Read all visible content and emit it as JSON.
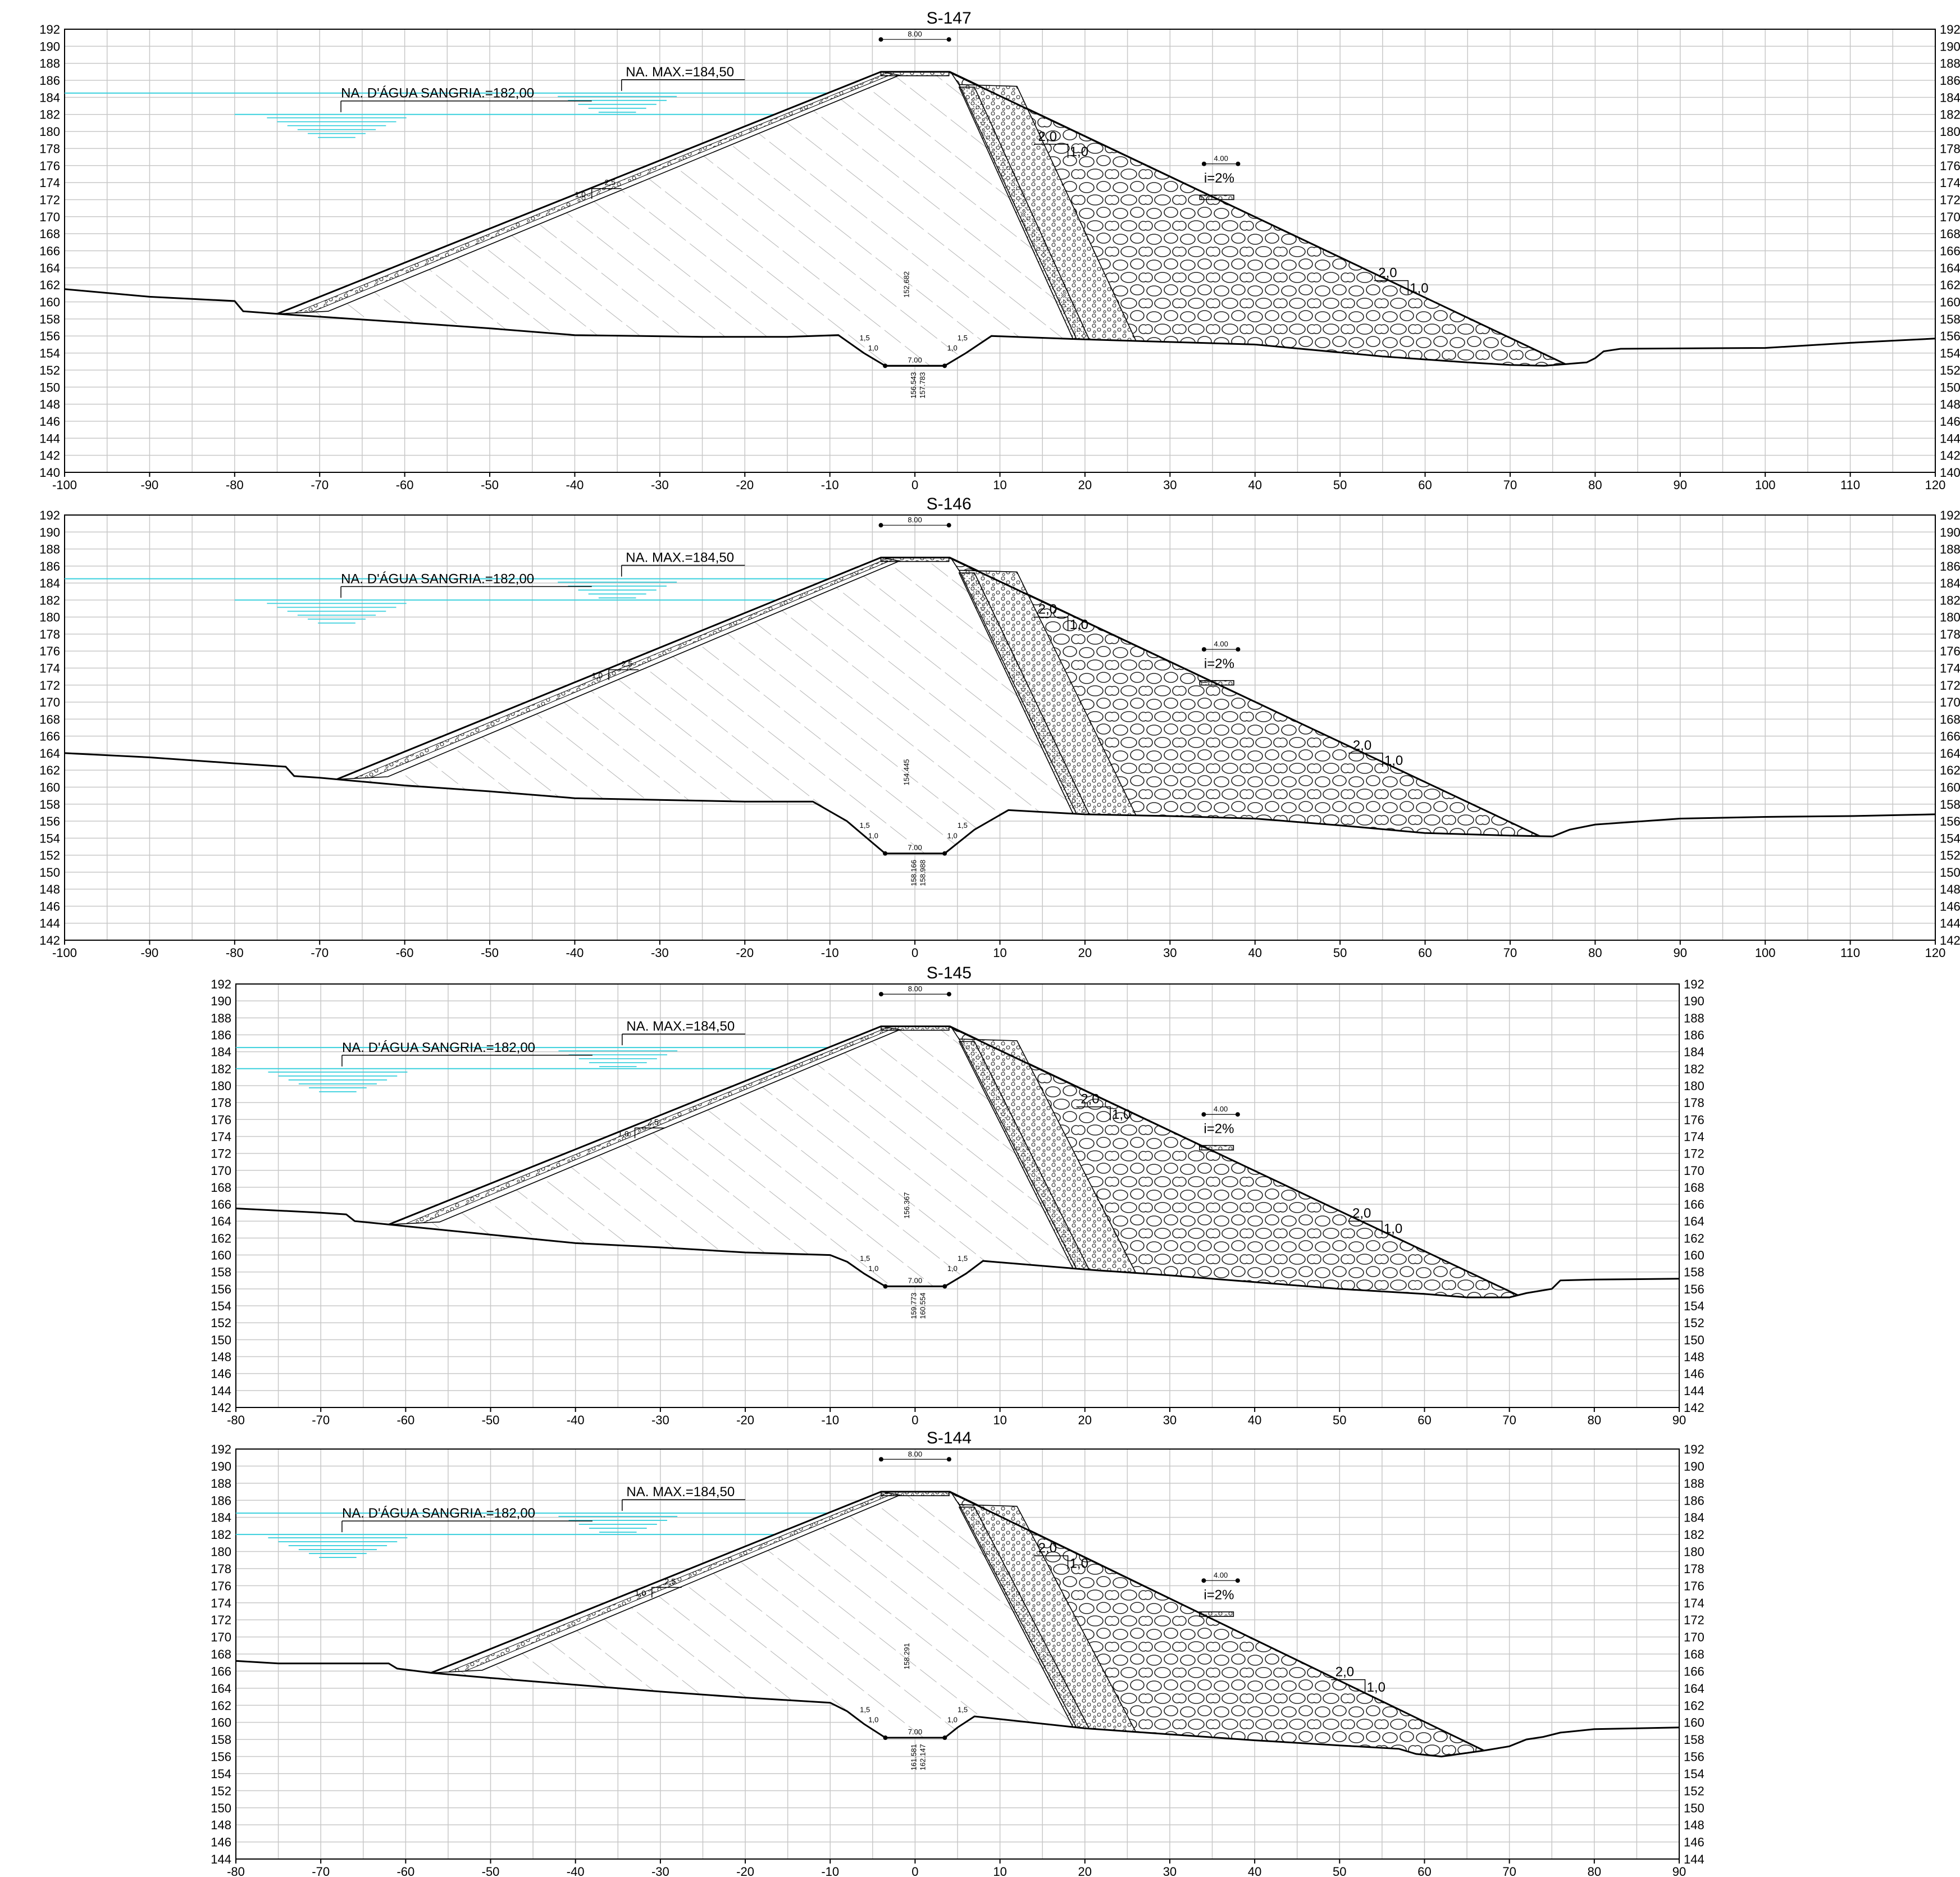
{
  "colors": {
    "grid": "#c8c8c8",
    "water": "#3ad0dd",
    "line": "#000000",
    "fill": "#ffffff"
  },
  "labels": {
    "na_max": "NA. MAX.=184,50",
    "na_sangria": "NA. D'ÁGUA SANGRIA.=182,00",
    "crest_width": "8.00",
    "berm_width": "4.00",
    "berm_slope": "i=2%",
    "slope_2_0": "2,0",
    "slope_1_0": "1,0",
    "slope_2_5": "2,5",
    "slope_1_5": "1,5",
    "base_width": "7.00"
  },
  "chart_data": [
    {
      "type": "section",
      "title": "S-147",
      "xlim": [
        -100,
        120
      ],
      "ylim": [
        140,
        192
      ],
      "ground": [
        [
          -100,
          161.5
        ],
        [
          -90,
          160.6
        ],
        [
          -80,
          160.1
        ],
        [
          -79,
          158.9
        ],
        [
          -75,
          158.6
        ],
        [
          -60,
          157.6
        ],
        [
          -50,
          156.9
        ],
        [
          -40,
          156.1
        ],
        [
          -25,
          155.9
        ],
        [
          -15,
          155.9
        ],
        [
          -9,
          156.1
        ],
        [
          -6,
          154.0
        ],
        [
          -3.5,
          152.5
        ],
        [
          3.5,
          152.5
        ],
        [
          6,
          154.0
        ],
        [
          9,
          156.0
        ],
        [
          20,
          155.6
        ],
        [
          30,
          155.3
        ],
        [
          40,
          155.0
        ],
        [
          55,
          153.6
        ],
        [
          65,
          152.9
        ],
        [
          70,
          152.6
        ],
        [
          74,
          152.5
        ],
        [
          79,
          152.9
        ],
        [
          80,
          153.4
        ],
        [
          81,
          154.2
        ],
        [
          83,
          154.5
        ],
        [
          100,
          154.6
        ],
        [
          110,
          155.2
        ],
        [
          120,
          155.7
        ]
      ],
      "us_toe": -75,
      "ds_toe": 76.5,
      "berm": 2,
      "ds_slope_labels": [
        [
          17,
          178.5
        ],
        [
          57,
          162.5
        ]
      ],
      "us_slope_label": [
        -37,
        173.3
      ],
      "core_text": "152.682",
      "low_text": [
        "156.543",
        "157.783"
      ]
    },
    {
      "type": "section",
      "title": "S-146",
      "xlim": [
        -100,
        120
      ],
      "ylim": [
        142,
        192
      ],
      "ground": [
        [
          -100,
          164.0
        ],
        [
          -90,
          163.5
        ],
        [
          -80,
          162.8
        ],
        [
          -74,
          162.4
        ],
        [
          -73,
          161.3
        ],
        [
          -70,
          161.1
        ],
        [
          -60,
          160.2
        ],
        [
          -50,
          159.5
        ],
        [
          -40,
          158.7
        ],
        [
          -30,
          158.5
        ],
        [
          -20,
          158.3
        ],
        [
          -12,
          158.3
        ],
        [
          -8,
          156.0
        ],
        [
          -3.5,
          152.2
        ],
        [
          3.5,
          152.2
        ],
        [
          7,
          155.0
        ],
        [
          11,
          157.3
        ],
        [
          20,
          156.8
        ],
        [
          30,
          156.6
        ],
        [
          40,
          156.3
        ],
        [
          50,
          155.5
        ],
        [
          60,
          154.6
        ],
        [
          70,
          154.3
        ],
        [
          75,
          154.2
        ],
        [
          77,
          155.0
        ],
        [
          80,
          155.6
        ],
        [
          90,
          156.3
        ],
        [
          100,
          156.5
        ],
        [
          110,
          156.6
        ],
        [
          120,
          156.8
        ]
      ],
      "us_toe": -68,
      "ds_toe": 73.5,
      "berm": 2,
      "ds_slope_labels": [
        [
          17,
          180.0
        ],
        [
          54,
          164.0
        ]
      ],
      "us_slope_label": [
        -35,
        173.8
      ],
      "core_text": "154.445",
      "low_text": [
        "158.166",
        "158.988"
      ]
    },
    {
      "type": "section",
      "title": "S-145",
      "xlim": [
        -80,
        90
      ],
      "ylim": [
        142,
        192
      ],
      "ground": [
        [
          -80,
          165.5
        ],
        [
          -70,
          165.0
        ],
        [
          -67,
          164.8
        ],
        [
          -66,
          164.0
        ],
        [
          -60,
          163.4
        ],
        [
          -50,
          162.4
        ],
        [
          -40,
          161.4
        ],
        [
          -30,
          160.9
        ],
        [
          -20,
          160.3
        ],
        [
          -10,
          160.0
        ],
        [
          -8,
          159.2
        ],
        [
          -6,
          157.8
        ],
        [
          -3.5,
          156.3
        ],
        [
          3.5,
          156.3
        ],
        [
          6,
          157.8
        ],
        [
          8,
          159.3
        ],
        [
          20,
          158.3
        ],
        [
          30,
          157.6
        ],
        [
          40,
          156.8
        ],
        [
          50,
          156.0
        ],
        [
          60,
          155.4
        ],
        [
          65,
          155.0
        ],
        [
          70,
          155.0
        ],
        [
          72,
          155.5
        ],
        [
          75,
          156.0
        ],
        [
          76,
          157.0
        ],
        [
          80,
          157.1
        ],
        [
          90,
          157.2
        ]
      ],
      "us_toe": -62,
      "ds_toe": 71,
      "berm": 1,
      "ds_slope_labels": [
        [
          22,
          177.5
        ],
        [
          54,
          164.0
        ]
      ],
      "us_slope_label": [
        -32,
        175.0
      ],
      "core_text": "156.367",
      "low_text": [
        "159.773",
        "160.554"
      ]
    },
    {
      "type": "section",
      "title": "S-144",
      "xlim": [
        -80,
        90
      ],
      "ylim": [
        144,
        192
      ],
      "ground": [
        [
          -80,
          167.2
        ],
        [
          -75,
          166.9
        ],
        [
          -62,
          166.9
        ],
        [
          -61,
          166.3
        ],
        [
          -57,
          165.8
        ],
        [
          -50,
          165.2
        ],
        [
          -40,
          164.4
        ],
        [
          -30,
          163.6
        ],
        [
          -20,
          162.9
        ],
        [
          -10,
          162.3
        ],
        [
          -8,
          161.3
        ],
        [
          -6,
          159.8
        ],
        [
          -3.5,
          158.2
        ],
        [
          3.5,
          158.2
        ],
        [
          5,
          159.4
        ],
        [
          7,
          160.7
        ],
        [
          20,
          159.3
        ],
        [
          30,
          158.6
        ],
        [
          40,
          157.9
        ],
        [
          50,
          157.3
        ],
        [
          57,
          156.9
        ],
        [
          59,
          156.3
        ],
        [
          62,
          156.0
        ],
        [
          67,
          156.7
        ],
        [
          70,
          157.2
        ],
        [
          72,
          158.0
        ],
        [
          74,
          158.3
        ],
        [
          76,
          158.8
        ],
        [
          80,
          159.2
        ],
        [
          90,
          159.4
        ]
      ],
      "us_toe": -57,
      "ds_toe": 67,
      "berm": 1,
      "ds_slope_labels": [
        [
          17,
          179.5
        ],
        [
          52,
          165.0
        ]
      ],
      "us_slope_label": [
        -30,
        175.8
      ],
      "core_text": "158.291",
      "low_text": [
        "161.581",
        "162.147"
      ]
    }
  ]
}
